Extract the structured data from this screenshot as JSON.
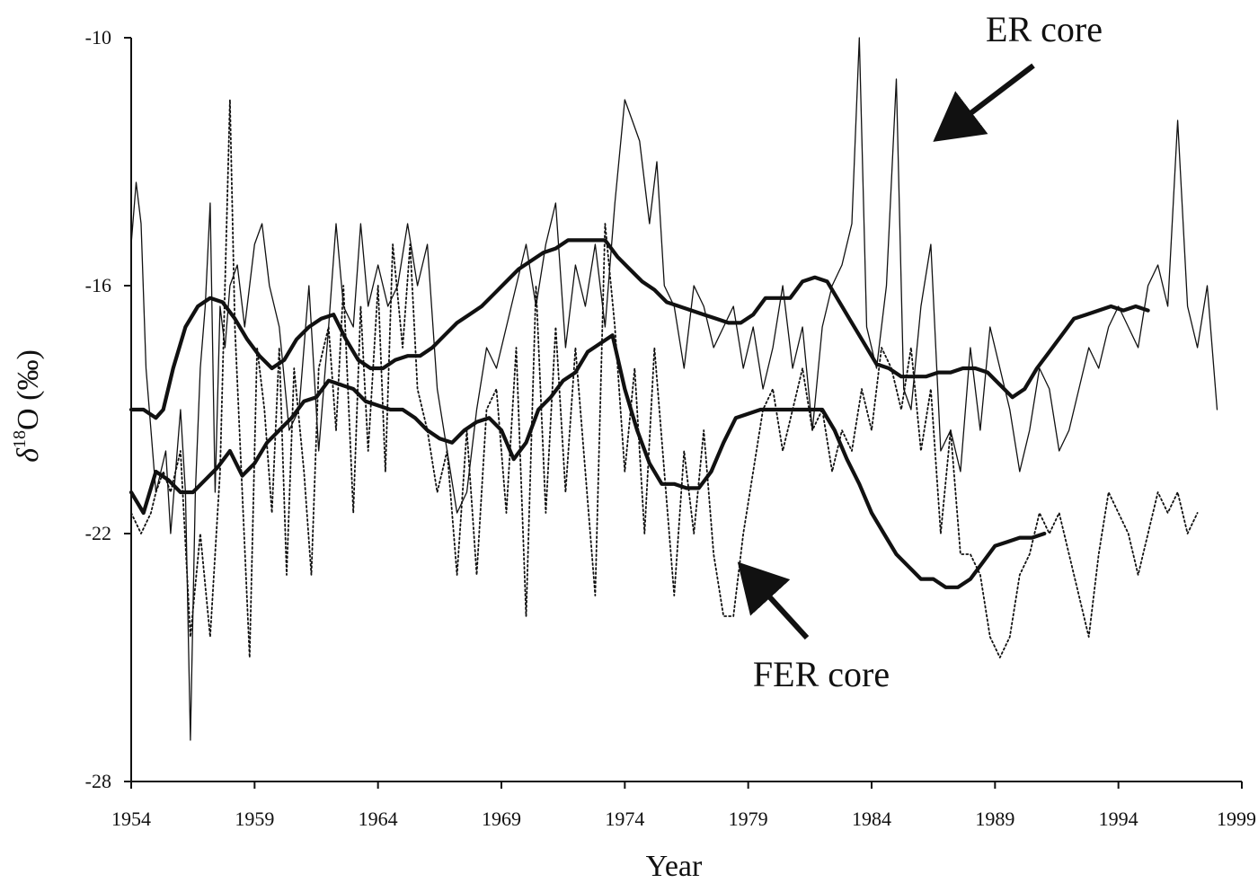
{
  "chart_data": {
    "type": "line",
    "xlabel": "Year",
    "ylabel": "δ18O (‰)",
    "ylabel_parts": {
      "symbol": "δ",
      "sup": "18",
      "rest": "O (‰)"
    },
    "xlim": [
      1954,
      1999
    ],
    "ylim": [
      -28,
      -10
    ],
    "xticks": [
      1954,
      1959,
      1964,
      1969,
      1974,
      1979,
      1984,
      1989,
      1994,
      1999
    ],
    "xtick_labels": [
      "1954",
      "1959",
      "1964",
      "1969",
      "1974",
      "1979",
      "1984",
      "1989",
      "1994",
      "1999"
    ],
    "yticks": [
      -28,
      -22,
      -16,
      -10
    ],
    "ytick_labels": [
      "-28",
      "-22",
      "-16",
      "-10"
    ],
    "grid": false,
    "annotations": [
      {
        "text": "ER core",
        "points_to": {
          "x": 1986.5,
          "y": -12.5
        }
      },
      {
        "text": "FER core",
        "points_to": {
          "x": 1978.5,
          "y": -22.8
        }
      }
    ],
    "series": [
      {
        "style": "thin-solid",
        "x": [
          1954.0,
          1954.2,
          1954.4,
          1954.6,
          1954.8,
          1955.0,
          1955.2,
          1955.4,
          1955.6,
          1955.8,
          1956.0,
          1956.2,
          1956.4,
          1956.6,
          1956.8,
          1957.0,
          1957.2,
          1957.4,
          1957.6,
          1957.8,
          1958.0,
          1958.3,
          1958.6,
          1959.0,
          1959.3,
          1959.6,
          1960.0,
          1960.4,
          1960.8,
          1961.2,
          1961.6,
          1962.0,
          1962.3,
          1962.6,
          1963.0,
          1963.3,
          1963.6,
          1964.0,
          1964.4,
          1964.8,
          1965.2,
          1965.6,
          1966.0,
          1966.4,
          1966.8,
          1967.2,
          1967.6,
          1968.0,
          1968.4,
          1968.8,
          1969.2,
          1969.6,
          1970.0,
          1970.4,
          1970.8,
          1971.2,
          1971.6,
          1972.0,
          1972.4,
          1972.8,
          1973.2,
          1973.6,
          1974.0,
          1974.3,
          1974.6,
          1975.0,
          1975.3,
          1975.6,
          1976.0,
          1976.4,
          1976.8,
          1977.2,
          1977.6,
          1978.0,
          1978.4,
          1978.8,
          1979.2,
          1979.6,
          1980.0,
          1980.4,
          1980.8,
          1981.2,
          1981.6,
          1982.0,
          1982.4,
          1982.8,
          1983.2,
          1983.5,
          1983.8,
          1984.2,
          1984.6,
          1985.0,
          1985.3,
          1985.6,
          1986.0,
          1986.4,
          1986.8,
          1987.2,
          1987.6,
          1988.0,
          1988.4,
          1988.8,
          1989.2,
          1989.6,
          1990.0,
          1990.4,
          1990.8,
          1991.2,
          1991.6,
          1992.0,
          1992.4,
          1992.8,
          1993.2,
          1993.6,
          1994.0,
          1994.4,
          1994.8,
          1995.2,
          1995.6,
          1996.0,
          1996.4,
          1996.8,
          1997.2,
          1997.6,
          1998.0
        ],
        "y": [
          -15.0,
          -13.5,
          -14.5,
          -18.0,
          -19.5,
          -21.0,
          -20.5,
          -20.0,
          -22.0,
          -20.5,
          -19.0,
          -21.0,
          -27.0,
          -21.0,
          -18.0,
          -16.5,
          -14.0,
          -21.0,
          -16.5,
          -17.5,
          -16.0,
          -15.5,
          -17.0,
          -15.0,
          -14.5,
          -16.0,
          -17.0,
          -19.5,
          -19.0,
          -16.0,
          -20.0,
          -17.0,
          -14.5,
          -16.5,
          -17.0,
          -14.5,
          -16.5,
          -15.5,
          -16.5,
          -16.0,
          -14.5,
          -16.0,
          -15.0,
          -18.5,
          -20.0,
          -21.5,
          -21.0,
          -19.0,
          -17.5,
          -18.0,
          -17.0,
          -16.0,
          -15.0,
          -16.5,
          -15.0,
          -14.0,
          -17.5,
          -15.5,
          -16.5,
          -15.0,
          -17.0,
          -14.0,
          -11.5,
          -12.0,
          -12.5,
          -14.5,
          -13.0,
          -16.0,
          -16.5,
          -18.0,
          -16.0,
          -16.5,
          -17.5,
          -17.0,
          -16.5,
          -18.0,
          -17.0,
          -18.5,
          -17.5,
          -16.0,
          -18.0,
          -17.0,
          -19.5,
          -17.0,
          -16.0,
          -15.5,
          -14.5,
          -10.0,
          -17.0,
          -18.0,
          -16.0,
          -11.0,
          -18.5,
          -19.0,
          -16.5,
          -15.0,
          -20.0,
          -19.5,
          -20.5,
          -17.5,
          -19.5,
          -17.0,
          -18.0,
          -19.0,
          -20.5,
          -19.5,
          -18.0,
          -18.5,
          -20.0,
          -19.5,
          -18.5,
          -17.5,
          -18.0,
          -17.0,
          -16.5,
          -17.0,
          -17.5,
          -16.0,
          -15.5,
          -16.5,
          -12.0,
          -16.5,
          -17.5,
          -16.0,
          -19.0
        ]
      },
      {
        "style": "dotted",
        "x": [
          1954.0,
          1954.4,
          1954.8,
          1955.0,
          1955.3,
          1955.6,
          1956.0,
          1956.4,
          1956.8,
          1957.2,
          1957.6,
          1958.0,
          1958.2,
          1958.5,
          1958.8,
          1959.1,
          1959.4,
          1959.7,
          1960.0,
          1960.3,
          1960.6,
          1961.0,
          1961.3,
          1961.6,
          1962.0,
          1962.3,
          1962.6,
          1963.0,
          1963.3,
          1963.6,
          1964.0,
          1964.3,
          1964.6,
          1965.0,
          1965.3,
          1965.6,
          1966.0,
          1966.4,
          1966.8,
          1967.2,
          1967.6,
          1968.0,
          1968.4,
          1968.8,
          1969.2,
          1969.6,
          1970.0,
          1970.4,
          1970.8,
          1971.2,
          1971.6,
          1972.0,
          1972.4,
          1972.8,
          1973.2,
          1973.6,
          1974.0,
          1974.4,
          1974.8,
          1975.2,
          1975.6,
          1976.0,
          1976.4,
          1976.8,
          1977.2,
          1977.6,
          1978.0,
          1978.4,
          1978.8,
          1979.2,
          1979.6,
          1980.0,
          1980.4,
          1980.8,
          1981.2,
          1981.6,
          1982.0,
          1982.4,
          1982.8,
          1983.2,
          1983.6,
          1984.0,
          1984.4,
          1984.8,
          1985.2,
          1985.6,
          1986.0,
          1986.4,
          1986.8,
          1987.2,
          1987.6,
          1988.0,
          1988.4,
          1988.8,
          1989.2,
          1989.6,
          1990.0,
          1990.4,
          1990.8,
          1991.2,
          1991.6,
          1992.0,
          1992.4,
          1992.8,
          1993.2,
          1993.6,
          1994.0,
          1994.4,
          1994.8,
          1995.2,
          1995.6,
          1996.0,
          1996.4,
          1996.8,
          1997.2
        ],
        "y": [
          -21.5,
          -22.0,
          -21.5,
          -21.0,
          -20.5,
          -21.0,
          -20.0,
          -24.5,
          -22.0,
          -24.5,
          -20.5,
          -11.5,
          -17.0,
          -21.0,
          -25.0,
          -17.5,
          -19.0,
          -21.5,
          -17.5,
          -23.0,
          -18.0,
          -20.5,
          -23.0,
          -18.0,
          -17.0,
          -19.5,
          -16.0,
          -21.5,
          -16.5,
          -20.0,
          -16.0,
          -20.5,
          -15.0,
          -17.5,
          -15.0,
          -18.5,
          -19.5,
          -21.0,
          -20.0,
          -23.0,
          -19.5,
          -23.0,
          -19.0,
          -18.5,
          -21.5,
          -17.5,
          -24.0,
          -16.0,
          -21.5,
          -17.0,
          -21.0,
          -17.5,
          -20.5,
          -23.5,
          -14.5,
          -17.0,
          -20.5,
          -18.0,
          -22.0,
          -17.5,
          -20.5,
          -23.5,
          -20.0,
          -22.0,
          -19.5,
          -22.5,
          -24.0,
          -24.0,
          -22.0,
          -20.5,
          -19.0,
          -18.5,
          -20.0,
          -19.0,
          -18.0,
          -19.5,
          -19.0,
          -20.5,
          -19.5,
          -20.0,
          -18.5,
          -19.5,
          -17.5,
          -18.0,
          -19.0,
          -17.5,
          -20.0,
          -18.5,
          -22.0,
          -19.5,
          -22.5,
          -22.5,
          -23.0,
          -24.5,
          -25.0,
          -24.5,
          -23.0,
          -22.5,
          -21.5,
          -22.0,
          -21.5,
          -22.5,
          -23.5,
          -24.5,
          -22.5,
          -21.0,
          -21.5,
          -22.0,
          -23.0,
          -22.0,
          -21.0,
          -21.5,
          -21.0,
          -22.0,
          -21.5
        ]
      },
      {
        "style": "thick-solid",
        "x": [
          1954.0,
          1954.5,
          1955.0,
          1955.3,
          1955.7,
          1956.2,
          1956.7,
          1957.2,
          1957.7,
          1958.2,
          1958.7,
          1959.2,
          1959.7,
          1960.2,
          1960.7,
          1961.2,
          1961.7,
          1962.2,
          1962.7,
          1963.2,
          1963.7,
          1964.2,
          1964.7,
          1965.2,
          1965.7,
          1966.2,
          1966.7,
          1967.2,
          1967.7,
          1968.2,
          1968.7,
          1969.2,
          1969.7,
          1970.2,
          1970.7,
          1971.2,
          1971.7,
          1972.2,
          1972.7,
          1973.2,
          1973.7,
          1974.2,
          1974.7,
          1975.2,
          1975.7,
          1976.2,
          1976.7,
          1977.2,
          1977.7,
          1978.2,
          1978.7,
          1979.2,
          1979.7,
          1980.2,
          1980.7,
          1981.2,
          1981.7,
          1982.2,
          1982.7,
          1983.2,
          1983.7,
          1984.2,
          1984.7,
          1985.2,
          1985.7,
          1986.2,
          1986.7,
          1987.2,
          1987.7,
          1988.2,
          1988.7,
          1989.2,
          1989.7,
          1990.2,
          1990.7,
          1991.2,
          1991.7,
          1992.2,
          1992.7,
          1993.2,
          1993.7,
          1994.2,
          1994.7,
          1995.2
        ],
        "y": [
          -19.0,
          -19.0,
          -19.2,
          -19.0,
          -18.0,
          -17.0,
          -16.5,
          -16.3,
          -16.4,
          -16.8,
          -17.3,
          -17.7,
          -18.0,
          -17.8,
          -17.3,
          -17.0,
          -16.8,
          -16.7,
          -17.3,
          -17.8,
          -18.0,
          -18.0,
          -17.8,
          -17.7,
          -17.7,
          -17.5,
          -17.2,
          -16.9,
          -16.7,
          -16.5,
          -16.2,
          -15.9,
          -15.6,
          -15.4,
          -15.2,
          -15.1,
          -14.9,
          -14.9,
          -14.9,
          -14.9,
          -15.3,
          -15.6,
          -15.9,
          -16.1,
          -16.4,
          -16.5,
          -16.6,
          -16.7,
          -16.8,
          -16.9,
          -16.9,
          -16.7,
          -16.3,
          -16.3,
          -16.3,
          -15.9,
          -15.8,
          -15.9,
          -16.4,
          -16.9,
          -17.4,
          -17.9,
          -18.0,
          -18.2,
          -18.2,
          -18.2,
          -18.1,
          -18.1,
          -18.0,
          -18.0,
          -18.1,
          -18.4,
          -18.7,
          -18.5,
          -18.0,
          -17.6,
          -17.2,
          -16.8,
          -16.7,
          -16.6,
          -16.5,
          -16.6,
          -16.5,
          -16.6
        ]
      },
      {
        "style": "thick-solid",
        "x": [
          1954.0,
          1954.5,
          1955.0,
          1955.5,
          1956.0,
          1956.5,
          1957.0,
          1957.5,
          1958.0,
          1958.5,
          1959.0,
          1959.5,
          1960.0,
          1960.5,
          1961.0,
          1961.5,
          1962.0,
          1962.5,
          1963.0,
          1963.5,
          1964.0,
          1964.5,
          1965.0,
          1965.5,
          1966.0,
          1966.5,
          1967.0,
          1967.5,
          1968.0,
          1968.5,
          1969.0,
          1969.5,
          1970.0,
          1970.5,
          1971.0,
          1971.5,
          1972.0,
          1972.5,
          1973.0,
          1973.5,
          1974.0,
          1974.5,
          1975.0,
          1975.5,
          1976.0,
          1976.5,
          1977.0,
          1977.5,
          1978.0,
          1978.5,
          1979.0,
          1979.5,
          1980.0,
          1980.5,
          1981.0,
          1981.5,
          1982.0,
          1982.5,
          1983.0,
          1983.5,
          1984.0,
          1984.5,
          1985.0,
          1985.5,
          1986.0,
          1986.5,
          1987.0,
          1987.5,
          1988.0,
          1988.5,
          1989.0,
          1989.5,
          1990.0,
          1990.5,
          1991.0
        ],
        "y": [
          -21.0,
          -21.5,
          -20.5,
          -20.7,
          -21.0,
          -21.0,
          -20.7,
          -20.4,
          -20.0,
          -20.6,
          -20.3,
          -19.8,
          -19.5,
          -19.2,
          -18.8,
          -18.7,
          -18.3,
          -18.4,
          -18.5,
          -18.8,
          -18.9,
          -19.0,
          -19.0,
          -19.2,
          -19.5,
          -19.7,
          -19.8,
          -19.5,
          -19.3,
          -19.2,
          -19.5,
          -20.2,
          -19.8,
          -19.0,
          -18.7,
          -18.3,
          -18.1,
          -17.6,
          -17.4,
          -17.2,
          -18.5,
          -19.5,
          -20.3,
          -20.8,
          -20.8,
          -20.9,
          -20.9,
          -20.5,
          -19.8,
          -19.2,
          -19.1,
          -19.0,
          -19.0,
          -19.0,
          -19.0,
          -19.0,
          -19.0,
          -19.5,
          -20.2,
          -20.8,
          -21.5,
          -22.0,
          -22.5,
          -22.8,
          -23.1,
          -23.1,
          -23.3,
          -23.3,
          -23.1,
          -22.7,
          -22.3,
          -22.2,
          -22.1,
          -22.1,
          -22.0
        ]
      }
    ]
  }
}
